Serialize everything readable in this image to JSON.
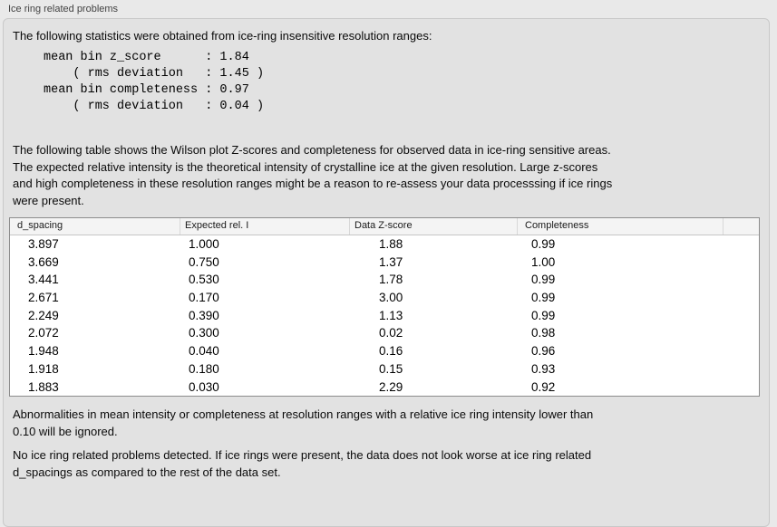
{
  "panel": {
    "title": "Ice ring related problems"
  },
  "intro": {
    "text": "The following statistics were obtained from ice-ring insensitive resolution ranges:"
  },
  "stats_block": "mean bin z_score      : 1.84\n    ( rms deviation   : 1.45 )\nmean bin completeness : 0.97\n    ( rms deviation   : 0.04 )",
  "description": "The following table shows the Wilson plot Z-scores and completeness for observed data in ice-ring sensitive areas.\nThe expected relative intensity is the theoretical intensity of crystalline ice at the given resolution. Large z-scores\nand high completeness in these resolution ranges might be a reason to re-assess your data processsing if ice rings\nwere present.",
  "table": {
    "columns": [
      "d_spacing",
      "Expected rel. I",
      "Data Z-score",
      "Completeness",
      ""
    ],
    "rows": [
      [
        "3.897",
        "1.000",
        "1.88",
        "0.99"
      ],
      [
        "3.669",
        "0.750",
        "1.37",
        "1.00"
      ],
      [
        "3.441",
        "0.530",
        "1.78",
        "0.99"
      ],
      [
        "2.671",
        "0.170",
        "3.00",
        "0.99"
      ],
      [
        "2.249",
        "0.390",
        "1.13",
        "0.99"
      ],
      [
        "2.072",
        "0.300",
        "0.02",
        "0.98"
      ],
      [
        "1.948",
        "0.040",
        "0.16",
        "0.96"
      ],
      [
        "1.918",
        "0.180",
        "0.15",
        "0.93"
      ],
      [
        "1.883",
        "0.030",
        "2.29",
        "0.92"
      ]
    ]
  },
  "notes": {
    "ignore_note": "Abnormalities in mean intensity or completeness at resolution ranges with a relative ice ring intensity lower than\n0.10 will be ignored.",
    "conclusion": "No ice ring related problems detected. If ice rings were present, the data does not look worse at ice ring related\nd_spacings as compared to the rest of the data set."
  },
  "colors": {
    "page_bg": "#e9e9e9",
    "panel_bg": "#e2e2e2",
    "panel_border": "#c9c9c9",
    "table_border": "#8c8c8c",
    "table_header_bg": "#f4f4f4"
  }
}
